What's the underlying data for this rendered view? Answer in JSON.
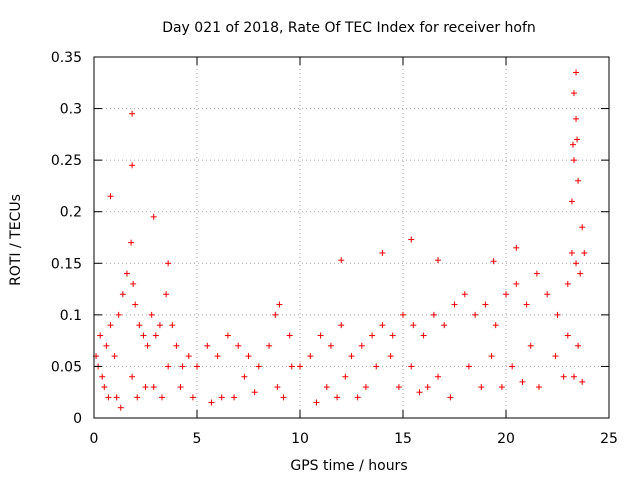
{
  "chart_data": {
    "type": "scatter",
    "title": "Day 021 of 2018, Rate Of TEC Index for receiver hofn",
    "xlabel": "GPS time / hours",
    "ylabel": "ROTI / TECUs",
    "xlim": [
      0,
      25
    ],
    "ylim": [
      0,
      0.35
    ],
    "xticks": [
      0,
      5,
      10,
      15,
      20,
      25
    ],
    "yticks": [
      0,
      0.05,
      0.1,
      0.15,
      0.2,
      0.25,
      0.3,
      0.35
    ],
    "xtick_labels": [
      "0",
      "5",
      "10",
      "15",
      "20",
      "25"
    ],
    "ytick_labels": [
      "0",
      "0.05",
      "0.1",
      "0.15",
      "0.2",
      "0.25",
      "0.3",
      "0.35"
    ],
    "grid": true,
    "marker": "+",
    "color": "#ee0000",
    "series": [
      {
        "x": [
          0.1,
          0.2,
          0.3,
          0.4,
          0.6,
          0.8,
          1.0,
          1.2,
          1.4,
          1.6,
          1.8,
          1.9,
          2.0,
          2.2,
          2.4,
          2.6,
          2.8,
          3.0,
          3.2,
          3.5,
          3.8,
          4.0,
          4.3,
          4.6,
          5.0,
          5.5,
          6.0,
          6.5,
          7.0,
          7.5,
          8.0,
          8.5,
          8.8,
          9.0,
          9.5,
          10.0,
          10.5,
          11.0,
          11.5,
          12.0,
          12.5,
          13.0,
          13.5,
          14.0,
          14.5,
          15.0,
          15.5,
          16.0,
          16.5,
          17.0,
          17.5,
          18.0,
          18.5,
          19.0,
          19.5,
          20.0,
          20.5,
          21.0,
          21.5,
          22.0,
          22.5,
          23.0,
          23.2,
          23.4,
          23.6,
          23.8,
          0.5,
          1.1,
          1.85,
          2.9,
          3.6,
          4.2,
          6.2,
          7.3,
          8.9,
          9.6,
          11.3,
          12.2,
          13.7,
          14.4,
          15.4,
          16.7,
          18.2,
          19.3,
          20.3,
          21.2,
          22.4,
          23.0,
          23.5,
          0.7,
          1.3,
          2.1,
          2.5,
          3.3,
          4.8,
          5.7,
          6.8,
          7.8,
          9.2,
          10.8,
          11.8,
          12.8,
          13.2,
          14.8,
          15.8,
          16.2,
          17.3,
          18.8,
          19.8,
          20.8,
          21.6,
          22.8,
          23.3,
          23.7,
          1.85,
          1.85,
          0.8,
          2.9,
          3.6,
          12.0,
          14.0,
          15.4,
          16.7,
          19.4,
          20.5,
          23.4,
          23.3,
          23.4,
          23.25,
          23.3,
          23.45,
          23.2,
          23.5,
          23.7
        ],
        "y": [
          0.06,
          0.05,
          0.08,
          0.04,
          0.07,
          0.09,
          0.06,
          0.1,
          0.12,
          0.14,
          0.17,
          0.13,
          0.11,
          0.09,
          0.08,
          0.07,
          0.1,
          0.08,
          0.09,
          0.12,
          0.09,
          0.07,
          0.05,
          0.06,
          0.05,
          0.07,
          0.06,
          0.08,
          0.07,
          0.06,
          0.05,
          0.07,
          0.1,
          0.11,
          0.08,
          0.05,
          0.06,
          0.08,
          0.07,
          0.09,
          0.06,
          0.07,
          0.08,
          0.09,
          0.08,
          0.1,
          0.09,
          0.08,
          0.1,
          0.09,
          0.11,
          0.12,
          0.1,
          0.11,
          0.09,
          0.12,
          0.13,
          0.11,
          0.14,
          0.12,
          0.1,
          0.13,
          0.16,
          0.15,
          0.14,
          0.16,
          0.03,
          0.02,
          0.04,
          0.03,
          0.05,
          0.03,
          0.02,
          0.04,
          0.03,
          0.05,
          0.03,
          0.04,
          0.05,
          0.06,
          0.05,
          0.04,
          0.05,
          0.06,
          0.05,
          0.07,
          0.06,
          0.08,
          0.07,
          0.02,
          0.01,
          0.02,
          0.03,
          0.02,
          0.02,
          0.015,
          0.02,
          0.025,
          0.02,
          0.015,
          0.02,
          0.02,
          0.03,
          0.03,
          0.025,
          0.03,
          0.02,
          0.03,
          0.03,
          0.035,
          0.03,
          0.04,
          0.04,
          0.035,
          0.295,
          0.245,
          0.215,
          0.195,
          0.15,
          0.153,
          0.16,
          0.173,
          0.153,
          0.152,
          0.165,
          0.335,
          0.315,
          0.29,
          0.265,
          0.25,
          0.27,
          0.21,
          0.23,
          0.185
        ]
      }
    ]
  }
}
